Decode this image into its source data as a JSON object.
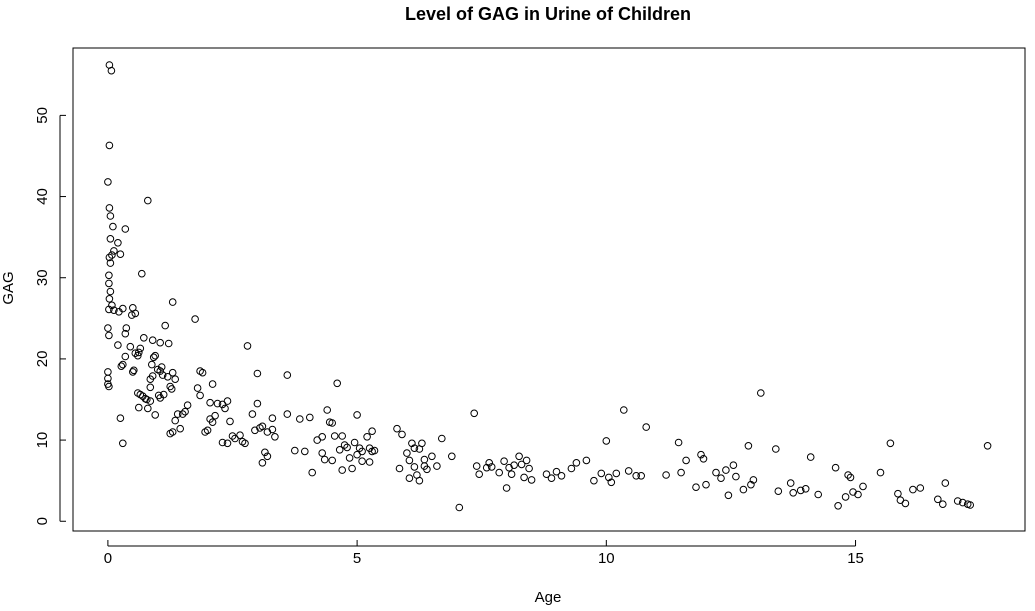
{
  "chart_data": {
    "type": "scatter",
    "title": "Level of GAG in Urine of Children",
    "xlabel": "Age",
    "ylabel": "GAG",
    "xlim": [
      -0.7,
      18.4
    ],
    "ylim": [
      -1.2,
      58.3
    ],
    "xticks": [
      0,
      5,
      10,
      15
    ],
    "yticks": [
      0,
      10,
      20,
      30,
      40,
      50
    ],
    "grid": false,
    "legend": "none",
    "marker": "open-circle",
    "color": "#000000",
    "points": [
      [
        0.03,
        56.2
      ],
      [
        0.07,
        55.5
      ],
      [
        0.03,
        46.3
      ],
      [
        0.0,
        41.8
      ],
      [
        0.03,
        38.6
      ],
      [
        0.05,
        37.6
      ],
      [
        0.1,
        36.3
      ],
      [
        0.05,
        34.8
      ],
      [
        0.12,
        33.3
      ],
      [
        0.08,
        32.8
      ],
      [
        0.03,
        32.5
      ],
      [
        0.05,
        31.8
      ],
      [
        0.02,
        30.3
      ],
      [
        0.02,
        29.3
      ],
      [
        0.05,
        28.3
      ],
      [
        0.03,
        27.4
      ],
      [
        0.08,
        26.6
      ],
      [
        0.02,
        26.1
      ],
      [
        0.12,
        26.0
      ],
      [
        0.22,
        25.8
      ],
      [
        0.0,
        23.8
      ],
      [
        0.02,
        22.9
      ],
      [
        0.0,
        18.4
      ],
      [
        0.0,
        17.6
      ],
      [
        0.0,
        16.9
      ],
      [
        0.02,
        16.6
      ],
      [
        0.35,
        36.0
      ],
      [
        0.2,
        34.3
      ],
      [
        0.25,
        32.9
      ],
      [
        0.3,
        26.2
      ],
      [
        0.2,
        21.7
      ],
      [
        0.3,
        19.3
      ],
      [
        0.35,
        20.3
      ],
      [
        0.27,
        19.1
      ],
      [
        0.35,
        23.1
      ],
      [
        0.37,
        23.8
      ],
      [
        0.45,
        21.5
      ],
      [
        0.48,
        25.4
      ],
      [
        0.5,
        26.3
      ],
      [
        0.52,
        18.6
      ],
      [
        0.55,
        25.6
      ],
      [
        0.25,
        12.7
      ],
      [
        0.3,
        9.6
      ],
      [
        0.6,
        20.4
      ],
      [
        0.62,
        20.8
      ],
      [
        0.65,
        21.3
      ],
      [
        0.55,
        20.7
      ],
      [
        0.5,
        18.4
      ],
      [
        0.6,
        15.8
      ],
      [
        0.65,
        15.6
      ],
      [
        0.7,
        15.4
      ],
      [
        0.75,
        15.1
      ],
      [
        0.62,
        14.0
      ],
      [
        0.68,
        30.5
      ],
      [
        0.72,
        22.6
      ],
      [
        0.8,
        39.5
      ],
      [
        0.85,
        17.5
      ],
      [
        0.9,
        17.9
      ],
      [
        0.92,
        20.2
      ],
      [
        0.95,
        20.4
      ],
      [
        0.88,
        19.3
      ],
      [
        0.9,
        22.3
      ],
      [
        0.85,
        16.5
      ],
      [
        0.8,
        13.9
      ],
      [
        0.78,
        15.0
      ],
      [
        0.85,
        14.8
      ],
      [
        0.95,
        13.1
      ],
      [
        1.0,
        18.7
      ],
      [
        1.05,
        18.5
      ],
      [
        1.1,
        18.0
      ],
      [
        1.08,
        19.0
      ],
      [
        1.02,
        15.5
      ],
      [
        1.05,
        15.2
      ],
      [
        1.12,
        15.6
      ],
      [
        1.15,
        24.1
      ],
      [
        1.05,
        22.0
      ],
      [
        1.2,
        17.8
      ],
      [
        1.25,
        16.6
      ],
      [
        1.28,
        16.3
      ],
      [
        1.22,
        21.9
      ],
      [
        1.3,
        27.0
      ],
      [
        1.3,
        18.3
      ],
      [
        1.35,
        17.5
      ],
      [
        1.3,
        11.0
      ],
      [
        1.35,
        12.4
      ],
      [
        1.4,
        13.2
      ],
      [
        1.45,
        11.4
      ],
      [
        1.25,
        10.8
      ],
      [
        1.5,
        13.2
      ],
      [
        1.55,
        13.5
      ],
      [
        1.6,
        14.3
      ],
      [
        1.75,
        24.9
      ],
      [
        1.8,
        16.4
      ],
      [
        1.85,
        18.5
      ],
      [
        1.9,
        18.3
      ],
      [
        1.85,
        15.5
      ],
      [
        1.95,
        11.0
      ],
      [
        2.0,
        11.2
      ],
      [
        2.05,
        12.6
      ],
      [
        2.1,
        12.2
      ],
      [
        2.15,
        13.0
      ],
      [
        2.05,
        14.6
      ],
      [
        2.1,
        16.9
      ],
      [
        2.2,
        14.5
      ],
      [
        2.3,
        14.4
      ],
      [
        2.35,
        13.9
      ],
      [
        2.4,
        14.8
      ],
      [
        2.45,
        12.3
      ],
      [
        2.3,
        9.7
      ],
      [
        2.4,
        9.6
      ],
      [
        2.5,
        10.5
      ],
      [
        2.55,
        10.2
      ],
      [
        2.65,
        10.6
      ],
      [
        2.7,
        9.8
      ],
      [
        2.75,
        9.6
      ],
      [
        2.8,
        21.6
      ],
      [
        2.9,
        13.2
      ],
      [
        2.95,
        11.2
      ],
      [
        3.0,
        14.5
      ],
      [
        3.0,
        18.2
      ],
      [
        3.05,
        11.5
      ],
      [
        3.1,
        11.7
      ],
      [
        3.15,
        8.5
      ],
      [
        3.2,
        8.0
      ],
      [
        3.2,
        11.0
      ],
      [
        3.3,
        12.7
      ],
      [
        3.35,
        10.4
      ],
      [
        3.1,
        7.2
      ],
      [
        3.3,
        11.3
      ],
      [
        3.6,
        18.0
      ],
      [
        3.6,
        13.2
      ],
      [
        3.75,
        8.7
      ],
      [
        3.85,
        12.6
      ],
      [
        3.95,
        8.6
      ],
      [
        4.05,
        12.8
      ],
      [
        4.1,
        6.0
      ],
      [
        4.2,
        10.0
      ],
      [
        4.3,
        10.4
      ],
      [
        4.3,
        8.4
      ],
      [
        4.35,
        7.6
      ],
      [
        4.4,
        13.7
      ],
      [
        4.45,
        12.2
      ],
      [
        4.5,
        12.1
      ],
      [
        4.55,
        10.5
      ],
      [
        4.5,
        7.5
      ],
      [
        4.6,
        17.0
      ],
      [
        4.65,
        8.8
      ],
      [
        4.7,
        10.5
      ],
      [
        4.7,
        6.3
      ],
      [
        4.75,
        9.4
      ],
      [
        4.8,
        9.1
      ],
      [
        4.85,
        7.8
      ],
      [
        4.9,
        6.5
      ],
      [
        4.95,
        9.7
      ],
      [
        5.0,
        13.1
      ],
      [
        5.0,
        8.2
      ],
      [
        5.05,
        9.0
      ],
      [
        5.1,
        8.6
      ],
      [
        5.1,
        7.4
      ],
      [
        5.2,
        10.4
      ],
      [
        5.25,
        9.0
      ],
      [
        5.3,
        8.6
      ],
      [
        5.25,
        7.3
      ],
      [
        5.3,
        11.1
      ],
      [
        5.35,
        8.7
      ],
      [
        5.8,
        11.4
      ],
      [
        5.9,
        10.7
      ],
      [
        6.0,
        8.4
      ],
      [
        6.05,
        7.5
      ],
      [
        6.1,
        9.6
      ],
      [
        6.15,
        6.7
      ],
      [
        6.2,
        5.7
      ],
      [
        6.25,
        8.9
      ],
      [
        6.3,
        9.6
      ],
      [
        6.35,
        7.6
      ],
      [
        6.4,
        6.4
      ],
      [
        6.5,
        8.0
      ],
      [
        6.6,
        6.8
      ],
      [
        6.7,
        10.2
      ],
      [
        6.9,
        8.0
      ],
      [
        7.05,
        1.7
      ],
      [
        6.05,
        5.3
      ],
      [
        6.25,
        5.0
      ],
      [
        6.15,
        9.0
      ],
      [
        6.35,
        6.8
      ],
      [
        5.85,
        6.5
      ],
      [
        7.35,
        13.3
      ],
      [
        7.4,
        6.8
      ],
      [
        7.45,
        5.8
      ],
      [
        7.6,
        6.6
      ],
      [
        7.65,
        7.2
      ],
      [
        7.7,
        6.7
      ],
      [
        7.85,
        6.0
      ],
      [
        7.95,
        7.4
      ],
      [
        8.0,
        4.1
      ],
      [
        8.05,
        6.6
      ],
      [
        8.1,
        5.8
      ],
      [
        8.15,
        6.9
      ],
      [
        8.25,
        8.0
      ],
      [
        8.3,
        7.0
      ],
      [
        8.35,
        5.4
      ],
      [
        8.4,
        7.5
      ],
      [
        8.45,
        6.5
      ],
      [
        8.5,
        5.1
      ],
      [
        8.8,
        5.8
      ],
      [
        8.9,
        5.3
      ],
      [
        9.0,
        6.1
      ],
      [
        9.1,
        5.6
      ],
      [
        9.3,
        6.5
      ],
      [
        9.4,
        7.2
      ],
      [
        9.6,
        7.5
      ],
      [
        9.75,
        5.0
      ],
      [
        9.9,
        5.9
      ],
      [
        10.0,
        9.9
      ],
      [
        10.05,
        5.4
      ],
      [
        10.1,
        4.8
      ],
      [
        10.2,
        5.9
      ],
      [
        10.35,
        13.7
      ],
      [
        10.45,
        6.2
      ],
      [
        10.6,
        5.6
      ],
      [
        10.7,
        5.6
      ],
      [
        10.8,
        11.6
      ],
      [
        11.2,
        5.7
      ],
      [
        11.45,
        9.7
      ],
      [
        11.5,
        6.0
      ],
      [
        11.6,
        7.5
      ],
      [
        11.8,
        4.2
      ],
      [
        11.9,
        8.2
      ],
      [
        11.95,
        7.7
      ],
      [
        12.0,
        4.5
      ],
      [
        12.2,
        6.0
      ],
      [
        12.3,
        5.3
      ],
      [
        12.4,
        6.3
      ],
      [
        12.45,
        3.2
      ],
      [
        12.55,
        6.9
      ],
      [
        12.6,
        5.5
      ],
      [
        12.75,
        3.9
      ],
      [
        12.85,
        9.3
      ],
      [
        12.9,
        4.5
      ],
      [
        12.95,
        5.1
      ],
      [
        13.1,
        15.8
      ],
      [
        13.4,
        8.9
      ],
      [
        13.45,
        3.7
      ],
      [
        13.7,
        4.7
      ],
      [
        13.75,
        3.5
      ],
      [
        13.9,
        3.8
      ],
      [
        14.0,
        4.0
      ],
      [
        14.1,
        7.9
      ],
      [
        14.25,
        3.3
      ],
      [
        14.6,
        6.6
      ],
      [
        14.65,
        1.9
      ],
      [
        14.8,
        3.0
      ],
      [
        14.85,
        5.7
      ],
      [
        14.9,
        5.4
      ],
      [
        14.95,
        3.6
      ],
      [
        15.05,
        3.3
      ],
      [
        15.15,
        4.3
      ],
      [
        15.5,
        6.0
      ],
      [
        15.7,
        9.6
      ],
      [
        15.85,
        3.4
      ],
      [
        15.9,
        2.6
      ],
      [
        16.0,
        2.2
      ],
      [
        16.15,
        3.9
      ],
      [
        16.3,
        4.1
      ],
      [
        16.65,
        2.7
      ],
      [
        16.8,
        4.7
      ],
      [
        16.75,
        2.1
      ],
      [
        17.05,
        2.5
      ],
      [
        17.15,
        2.3
      ],
      [
        17.25,
        2.1
      ],
      [
        17.3,
        2.0
      ],
      [
        17.65,
        9.3
      ]
    ]
  }
}
